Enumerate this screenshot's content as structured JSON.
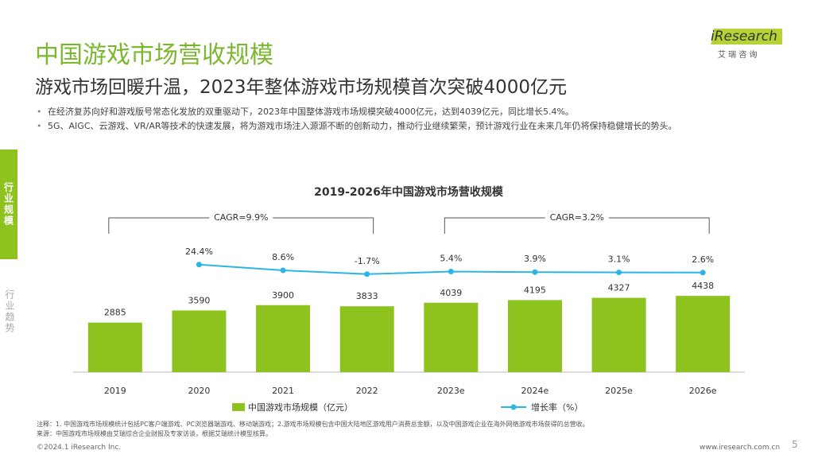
{
  "header": {
    "title": "中国游戏市场营收规模",
    "subtitle": "游戏市场回暖升温，2023年整体游戏市场规模首次突破4000亿元",
    "logo": "iResearch",
    "logo_sub": "艾 瑞 咨 询"
  },
  "bullets": [
    "在经济复苏向好和游戏版号常态化发放的双重驱动下，2023年中国整体游戏市场规模突破4000亿元，达到4039亿元，同比增长5.4%。",
    "5G、AIGC、云游戏、VR/AR等技术的快速发展，将为游戏市场注入源源不断的创新动力，推动行业继续繁荣，预计游戏行业在未来几年仍将保持稳健增长的势头。"
  ],
  "sidebar": [
    "行业规模",
    "行业趋势"
  ],
  "chart_data": {
    "type": "bar_line",
    "title": "2019-2026年中国游戏市场营收规模",
    "categories": [
      "2019",
      "2020",
      "2021",
      "2022",
      "2023e",
      "2024e",
      "2025e",
      "2026e"
    ],
    "series": [
      {
        "name": "中国游戏市场规模（亿元）",
        "color": "#8dc21f",
        "values": [
          2885,
          3590,
          3900,
          3833,
          4039,
          4195,
          4327,
          4438
        ]
      },
      {
        "name": "增长率（%）",
        "color": "#2bb5e6",
        "axis": "y2",
        "values": [
          null,
          24.4,
          8.6,
          -1.7,
          5.4,
          3.9,
          3.1,
          2.6
        ],
        "value_labels": [
          null,
          "24.4%",
          "8.6%",
          "-1.7%",
          "5.4%",
          "3.9%",
          "3.1%",
          "2.6%"
        ]
      }
    ],
    "ylim": [
      0,
      5000
    ],
    "y2lim": [
      -50,
      50
    ],
    "annotations": [
      "CAGR=9.9%",
      "CAGR=3.2%"
    ]
  },
  "footer": {
    "note": "注释：1. 中国游戏市场规模统计包括PC客户端游戏、PC浏览器端游戏、移动端游戏；2.游戏市场规模包含中国大陆地区游戏用户消费总金额，以及中国游戏企业在海外网络游戏市场获得的总营收。",
    "source": "来源：中国游戏市场规模由艾瑞综合企业财报及专家访谈，根据艾瑞统计模型核算。",
    "copyright": "©2024.1 iResearch Inc.",
    "url": "www.iresearch.com.cn",
    "page": "5"
  }
}
